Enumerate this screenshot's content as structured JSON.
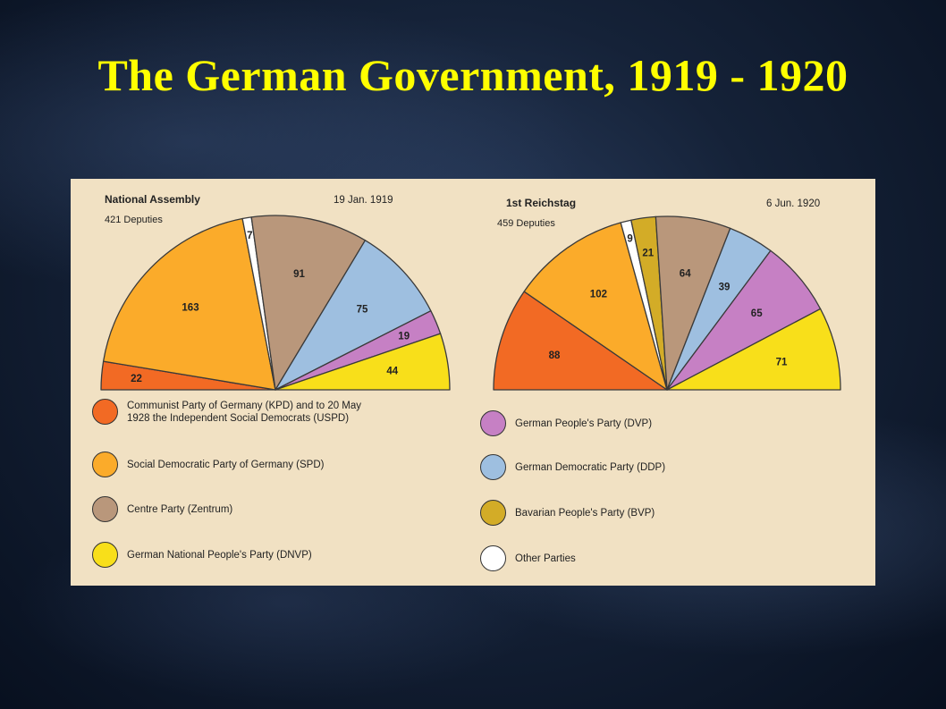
{
  "slide_title": "The German Government, 1919 - 1920",
  "colors": {
    "kpd": "#f26a24",
    "spd": "#fbab2a",
    "zentrum": "#b9977b",
    "dnvp": "#f8df1a",
    "dvp": "#c680c4",
    "ddp": "#9ebfe0",
    "bvp": "#d3ac27",
    "other": "#ffffff"
  },
  "legend": [
    {
      "key": "kpd",
      "label": "Communist Party of Germany (KPD) and to 20 May 1928 the Independent Social Democrats (USPD)"
    },
    {
      "key": "spd",
      "label": "Social Democratic Party of Germany (SPD)"
    },
    {
      "key": "zentrum",
      "label": "Centre Party (Zentrum)"
    },
    {
      "key": "dnvp",
      "label": "German National People's Party (DNVP)"
    },
    {
      "key": "dvp",
      "label": "German People's Party (DVP)"
    },
    {
      "key": "ddp",
      "label": "German Democratic Party (DDP)"
    },
    {
      "key": "bvp",
      "label": "Bavarian People's Party (BVP)"
    },
    {
      "key": "other",
      "label": "Other Parties"
    }
  ],
  "chart_data": [
    {
      "type": "pie",
      "subtype": "semicircle",
      "title": "National Assembly",
      "subtitle": "421 Deputies",
      "date": "19 Jan. 1919",
      "slices": [
        {
          "key": "kpd",
          "value": 22,
          "label": "22"
        },
        {
          "key": "spd",
          "value": 163,
          "label": "163"
        },
        {
          "key": "other",
          "value": 7,
          "label": "7"
        },
        {
          "key": "zentrum",
          "value": 91,
          "label": "91"
        },
        {
          "key": "ddp",
          "value": 75,
          "label": "75"
        },
        {
          "key": "dvp",
          "value": 19,
          "label": "19"
        },
        {
          "key": "dnvp",
          "value": 44,
          "label": "44"
        }
      ]
    },
    {
      "type": "pie",
      "subtype": "semicircle",
      "title": "1st Reichstag",
      "subtitle": "459 Deputies",
      "date": "6 Jun. 1920",
      "slices": [
        {
          "key": "kpd",
          "value": 88,
          "label": "88"
        },
        {
          "key": "spd",
          "value": 102,
          "label": "102"
        },
        {
          "key": "other",
          "value": 9,
          "label": "9"
        },
        {
          "key": "bvp",
          "value": 21,
          "label": "21"
        },
        {
          "key": "zentrum",
          "value": 64,
          "label": "64"
        },
        {
          "key": "ddp",
          "value": 39,
          "label": "39"
        },
        {
          "key": "dvp",
          "value": 65,
          "label": "65"
        },
        {
          "key": "dnvp",
          "value": 71,
          "label": "71"
        }
      ]
    }
  ]
}
